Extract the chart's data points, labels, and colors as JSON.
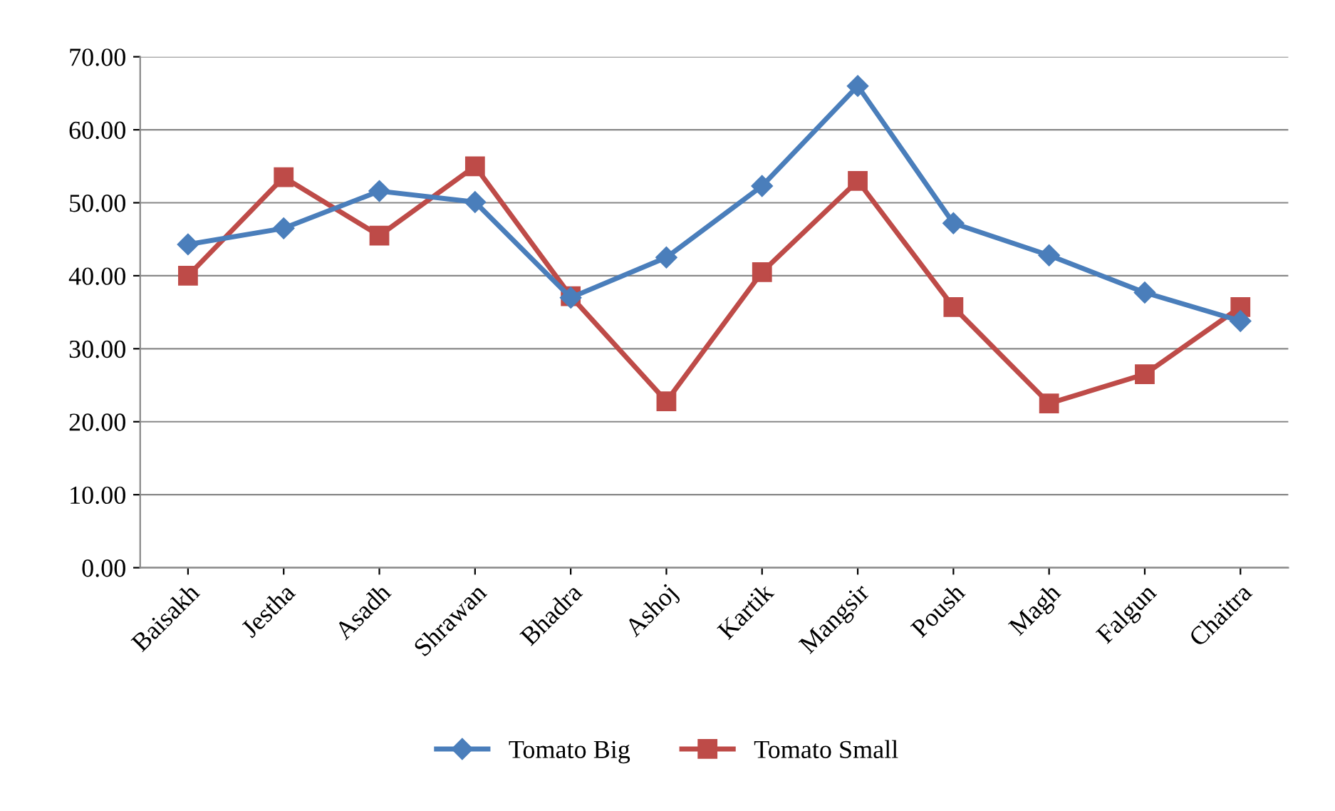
{
  "chart_data": {
    "type": "line",
    "categories": [
      "Baisakh",
      "Jestha",
      "Asadh",
      "Shrawan",
      "Bhadra",
      "Ashoj",
      "Kartik",
      "Mangsir",
      "Poush",
      "Magh",
      "Falgun",
      "Chaitra"
    ],
    "series": [
      {
        "name": "Tomato Big",
        "color": "#4a7ebb",
        "marker": "diamond",
        "values": [
          44.3,
          46.5,
          51.6,
          50.1,
          37.0,
          42.5,
          52.3,
          66.0,
          47.2,
          42.8,
          37.7,
          33.8
        ]
      },
      {
        "name": "Tomato Small",
        "color": "#be4b48",
        "marker": "square",
        "values": [
          40.0,
          53.5,
          45.5,
          55.0,
          37.2,
          22.8,
          40.5,
          53.0,
          35.7,
          22.5,
          26.5,
          35.7
        ]
      }
    ],
    "ylim": [
      0,
      70
    ],
    "yticks": [
      {
        "value": 0,
        "label": "0.00"
      },
      {
        "value": 10,
        "label": "10.00"
      },
      {
        "value": 20,
        "label": "20.00"
      },
      {
        "value": 30,
        "label": "30.00"
      },
      {
        "value": 40,
        "label": "40.00"
      },
      {
        "value": 50,
        "label": "50.00"
      },
      {
        "value": 60,
        "label": "60.00"
      },
      {
        "value": 70,
        "label": "70.00"
      }
    ],
    "grid": "y",
    "legend": "bottom",
    "line_style": "solid"
  }
}
